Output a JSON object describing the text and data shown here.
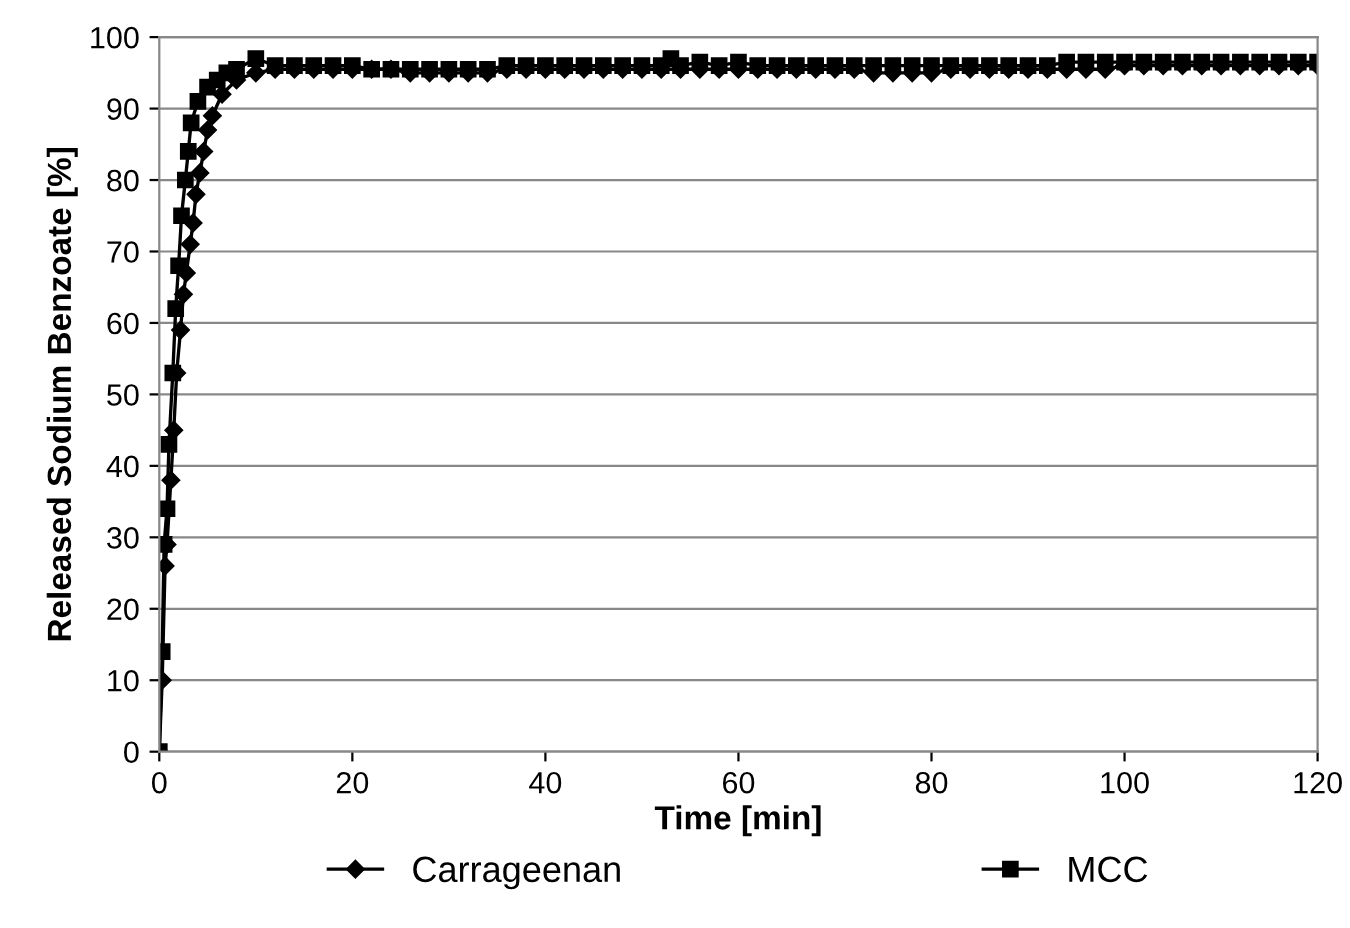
{
  "chart_data": {
    "type": "line",
    "xlabel": "Time [min]",
    "ylabel": "Released Sodium Benzoate [%]",
    "xlim": [
      0,
      120
    ],
    "ylim": [
      0,
      100
    ],
    "xticks": [
      0,
      20,
      40,
      60,
      80,
      100,
      120
    ],
    "yticks": [
      0,
      10,
      20,
      30,
      40,
      50,
      60,
      70,
      80,
      90,
      100
    ],
    "grid": "y",
    "legend": "bottom",
    "line_style": "solid",
    "series": [
      {
        "name": "Carrageenan",
        "color": "#000000",
        "marker": "diamond",
        "x": [
          0,
          0.3,
          0.6,
          0.8,
          1.2,
          1.5,
          1.8,
          2.2,
          2.5,
          2.8,
          3.2,
          3.5,
          3.8,
          4.2,
          4.6,
          5,
          5.5,
          6.5,
          8,
          10,
          12,
          14,
          16,
          18,
          20,
          22,
          24,
          26,
          28,
          30,
          32,
          34,
          36,
          38,
          40,
          42,
          44,
          46,
          48,
          50,
          52,
          54,
          56,
          58,
          60,
          62,
          64,
          66,
          68,
          70,
          72,
          74,
          76,
          78,
          80,
          82,
          84,
          86,
          88,
          90,
          92,
          94,
          96,
          98,
          100,
          102,
          104,
          106,
          108,
          110,
          112,
          114,
          116,
          118,
          120
        ],
        "values": [
          0,
          10,
          26,
          29,
          38,
          45,
          53,
          59,
          64,
          67,
          71,
          74,
          78,
          81,
          84,
          87,
          89,
          92,
          94,
          95,
          95.5,
          95.5,
          95.5,
          95.5,
          95.5,
          95.5,
          95.5,
          95,
          95,
          95,
          95,
          95,
          95.5,
          95.5,
          95.5,
          95.5,
          95.5,
          95.5,
          95.5,
          95.5,
          95.5,
          95.5,
          95.5,
          95.5,
          95.5,
          95.5,
          95.5,
          95.5,
          95.5,
          95.5,
          95.5,
          95,
          95,
          95,
          95,
          95.5,
          95.5,
          95.5,
          95.5,
          95.5,
          95.5,
          95.5,
          95.5,
          95.5,
          96,
          96,
          96,
          96,
          96,
          96,
          96,
          96,
          96,
          96,
          96
        ]
      },
      {
        "name": "MCC",
        "color": "#000000",
        "marker": "square",
        "x": [
          0,
          0.3,
          0.5,
          0.8,
          1,
          1.4,
          1.7,
          2,
          2.3,
          2.7,
          3,
          3.3,
          4,
          5,
          6,
          7,
          8,
          10,
          12,
          14,
          16,
          18,
          20,
          22,
          24,
          26,
          28,
          30,
          32,
          34,
          36,
          38,
          40,
          42,
          44,
          46,
          48,
          50,
          52,
          53,
          54,
          56,
          58,
          60,
          62,
          64,
          66,
          68,
          70,
          72,
          74,
          76,
          78,
          80,
          82,
          84,
          86,
          88,
          90,
          92,
          94,
          96,
          98,
          100,
          102,
          104,
          106,
          108,
          110,
          112,
          114,
          116,
          118,
          120
        ],
        "values": [
          0,
          14,
          29,
          34,
          43,
          53,
          62,
          68,
          75,
          80,
          84,
          88,
          91,
          93,
          94,
          95,
          95.5,
          97,
          96,
          96,
          96,
          96,
          96,
          95.5,
          95.5,
          95.5,
          95.5,
          95.5,
          95.5,
          95.5,
          96,
          96,
          96,
          96,
          96,
          96,
          96,
          96,
          96,
          97,
          96,
          96.5,
          96,
          96.5,
          96,
          96,
          96,
          96,
          96,
          96,
          96,
          96,
          96,
          96,
          96,
          96,
          96,
          96,
          96,
          96,
          96.5,
          96.5,
          96.5,
          96.5,
          96.5,
          96.5,
          96.5,
          96.5,
          96.5,
          96.5,
          96.5,
          96.5,
          96.5,
          96.5
        ]
      }
    ]
  }
}
